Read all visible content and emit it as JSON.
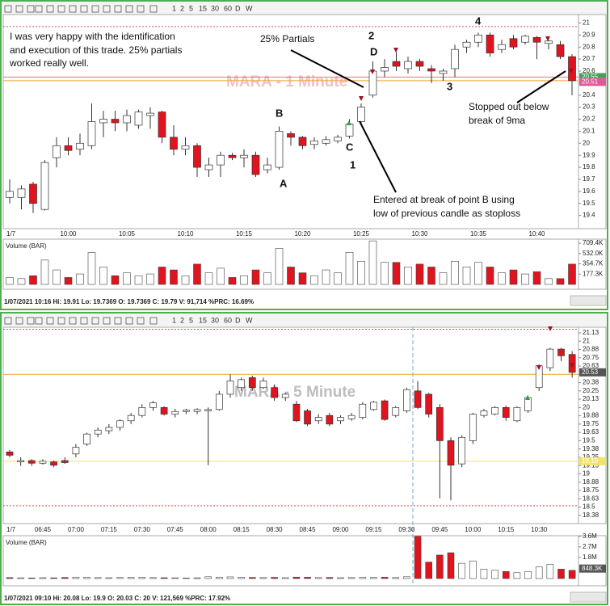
{
  "panels": [
    {
      "toolbar": [
        "1",
        "2",
        "5",
        "15",
        "30",
        "60",
        "D",
        "W"
      ],
      "date_tag": "1/7",
      "status": "1/07/2021 10:16 Hi: 19.91 Lo: 19.7369 O: 19.7369 C: 19.79 V: 91,714 %PRC: 16.69%"
    },
    {
      "toolbar": [
        "1",
        "2",
        "5",
        "15",
        "30",
        "60",
        "D",
        "W"
      ],
      "date_tag": "1/7",
      "status": "1/07/2021 09:10 Hi: 20.08 Lo: 19.9 O: 20.03 C: 20 V: 121,569 %PRC: 17.92%"
    }
  ],
  "chart_data": [
    {
      "type": "candlestick",
      "title": "MARA - 1 Minute",
      "categories": [
        null,
        null,
        null,
        null,
        null,
        "10:00",
        null,
        null,
        null,
        null,
        "10:05",
        null,
        null,
        null,
        null,
        "10:10",
        null,
        null,
        null,
        null,
        "10:15",
        null,
        null,
        null,
        null,
        "10:20",
        null,
        null,
        null,
        null,
        "10:25",
        null,
        null,
        null,
        null,
        "10:30",
        null,
        null,
        null,
        null,
        "10:35",
        null,
        null,
        null,
        null,
        "10:40",
        null,
        null,
        null
      ],
      "open": [
        19.55,
        19.55,
        19.66,
        19.45,
        19.88,
        19.98,
        19.95,
        19.98,
        20.17,
        20.2,
        20.17,
        20.15,
        20.23,
        20.26,
        20.05,
        19.95,
        19.98,
        19.78,
        19.82,
        19.9,
        19.88,
        19.9,
        19.78,
        19.8,
        20.08,
        20.05,
        19.99,
        20.0,
        20.02,
        20.06,
        20.18,
        20.4,
        20.6,
        20.68,
        20.62,
        20.68,
        20.62,
        20.58,
        20.62,
        20.8,
        20.84,
        20.9,
        20.78,
        20.87,
        20.84,
        20.88,
        20.83,
        20.82,
        20.72
      ],
      "high": [
        19.7,
        19.65,
        19.68,
        19.86,
        20.05,
        20.05,
        20.08,
        20.33,
        20.27,
        20.27,
        20.28,
        20.28,
        20.3,
        20.27,
        20.15,
        20.05,
        20.0,
        19.88,
        19.93,
        19.92,
        19.95,
        19.93,
        19.88,
        20.14,
        20.1,
        20.06,
        20.05,
        20.06,
        20.07,
        20.2,
        20.33,
        20.68,
        20.7,
        20.76,
        20.72,
        20.7,
        20.65,
        20.62,
        20.82,
        20.86,
        20.92,
        20.92,
        20.86,
        20.9,
        20.9,
        20.89,
        20.86,
        20.85,
        20.74
      ],
      "low": [
        19.5,
        19.45,
        19.42,
        19.44,
        19.8,
        19.9,
        19.9,
        19.95,
        20.05,
        20.1,
        20.1,
        20.12,
        20.12,
        20.0,
        19.9,
        19.9,
        19.72,
        19.72,
        19.72,
        19.86,
        19.8,
        19.72,
        19.75,
        19.78,
        19.98,
        19.95,
        19.95,
        19.98,
        20.0,
        20.04,
        20.15,
        20.38,
        20.55,
        20.6,
        20.58,
        20.6,
        20.5,
        20.52,
        20.55,
        20.75,
        20.8,
        20.72,
        20.75,
        20.78,
        20.82,
        20.7,
        20.78,
        20.7,
        20.4
      ],
      "close": [
        19.6,
        19.62,
        19.5,
        19.84,
        19.98,
        19.94,
        20.0,
        20.18,
        20.2,
        20.17,
        20.23,
        20.26,
        20.25,
        20.05,
        19.95,
        19.98,
        19.8,
        19.82,
        19.9,
        19.88,
        19.9,
        19.74,
        19.82,
        20.1,
        20.05,
        19.98,
        20.02,
        20.03,
        20.05,
        20.16,
        20.3,
        20.6,
        20.63,
        20.64,
        20.68,
        20.64,
        20.6,
        20.6,
        20.78,
        20.84,
        20.9,
        20.75,
        20.82,
        20.8,
        20.89,
        20.84,
        20.85,
        20.72,
        20.52
      ],
      "color_up": "#ffffff",
      "color_down": "#e0141e",
      "ylim": [
        19.29,
        21.07
      ],
      "yticks": [
        21,
        20.9,
        20.8,
        20.7,
        20.6,
        20.5,
        20.4,
        20.3,
        20.2,
        20.1,
        20,
        19.9,
        19.8,
        19.7,
        19.6,
        19.5,
        19.4
      ],
      "levels": [
        {
          "value": 20.97,
          "color": "#d9534f",
          "style": "dotted"
        },
        {
          "value": 20.55,
          "color": "#e07a7a",
          "style": "solid"
        },
        {
          "value": 20.52,
          "color": "#f0a030",
          "style": "solid"
        }
      ],
      "tags": [
        {
          "value": 20.55,
          "label": "20.55",
          "color": "#3aa657"
        },
        {
          "value": 20.51,
          "label": "20.51",
          "color": "#e05a9a"
        }
      ],
      "annotations": [
        "I was very happy with the identification",
        "and execution of this trade. 25% partials",
        "worked really well.",
        "25% Partials",
        "2",
        "D",
        "4",
        "3",
        "B",
        "C",
        "1",
        "A",
        "Stopped out below",
        "break of 9ma",
        "Entered at break of point B using",
        "low of previous candle as stoploss"
      ]
    },
    {
      "type": "volume",
      "title": "Volume (BAR)",
      "values": [
        120000,
        100000,
        150000,
        420000,
        250000,
        120000,
        180000,
        550000,
        300000,
        150000,
        200000,
        150000,
        180000,
        300000,
        250000,
        150000,
        350000,
        200000,
        280000,
        120000,
        150000,
        250000,
        200000,
        620000,
        300000,
        200000,
        150000,
        250000,
        200000,
        550000,
        400000,
        750000,
        380000,
        380000,
        300000,
        350000,
        300000,
        200000,
        400000,
        300000,
        380000,
        300000,
        200000,
        250000,
        180000,
        220000,
        100000,
        100000,
        350000
      ],
      "color_up": "#ffffff",
      "color_down": "#e0141e",
      "ylim": [
        0,
        780000
      ],
      "yticks": [
        {
          "value": 709400,
          "label": "709.4K"
        },
        {
          "value": 532000,
          "label": "532.0K"
        },
        {
          "value": 354700,
          "label": "354.7K"
        },
        {
          "value": 177300,
          "label": "177.3K"
        }
      ]
    },
    {
      "type": "candlestick",
      "title": "MARA - 5 Minute",
      "categories": [
        null,
        null,
        null,
        "06:45",
        null,
        null,
        "07:00",
        null,
        null,
        "07:15",
        null,
        null,
        "07:30",
        null,
        null,
        "07:45",
        null,
        null,
        "08:00",
        null,
        null,
        "08:15",
        null,
        null,
        "08:30",
        null,
        null,
        "08:45",
        null,
        null,
        "09:00",
        null,
        null,
        "09:15",
        null,
        null,
        "09:30",
        null,
        null,
        "09:45",
        null,
        null,
        "10:00",
        null,
        null,
        "10:15",
        null,
        null,
        "10:30",
        null,
        null,
        null
      ],
      "open": [
        19.33,
        19.18,
        19.2,
        19.16,
        19.18,
        19.2,
        19.3,
        19.45,
        19.6,
        19.65,
        19.7,
        19.8,
        19.88,
        20.0,
        20.0,
        19.9,
        19.94,
        19.94,
        19.95,
        19.97,
        20.2,
        20.3,
        20.45,
        20.3,
        20.3,
        20.15,
        20.05,
        19.95,
        19.8,
        19.88,
        19.8,
        19.83,
        19.85,
        19.97,
        20.1,
        19.88,
        19.95,
        20.25,
        20.2,
        20.0,
        19.5,
        19.15,
        19.5,
        19.88,
        19.9,
        20.0,
        19.8,
        19.95,
        20.3,
        20.6,
        20.88,
        20.8
      ],
      "high": [
        19.36,
        19.25,
        19.22,
        19.22,
        19.2,
        19.25,
        19.45,
        19.62,
        19.7,
        19.75,
        19.82,
        19.92,
        20.05,
        20.1,
        20.02,
        19.98,
        19.98,
        19.99,
        20.0,
        20.25,
        20.5,
        20.45,
        20.48,
        20.45,
        20.35,
        20.22,
        20.1,
        19.98,
        19.9,
        19.92,
        19.88,
        19.92,
        20.08,
        20.1,
        20.12,
        20.02,
        20.3,
        20.4,
        20.22,
        20.05,
        19.55,
        19.58,
        19.92,
        19.98,
        20.02,
        20.03,
        20.02,
        20.18,
        20.65,
        20.9,
        20.9,
        20.85
      ],
      "low": [
        19.25,
        19.12,
        19.12,
        19.14,
        19.1,
        19.15,
        19.25,
        19.42,
        19.55,
        19.6,
        19.65,
        19.75,
        19.85,
        19.95,
        19.88,
        19.85,
        19.9,
        19.9,
        19.13,
        19.95,
        20.15,
        20.25,
        20.25,
        20.28,
        20.1,
        20.1,
        19.78,
        19.72,
        19.75,
        19.72,
        19.75,
        19.8,
        19.82,
        19.95,
        19.8,
        19.85,
        19.92,
        19.98,
        19.85,
        18.63,
        18.6,
        19.1,
        19.45,
        19.85,
        19.88,
        19.8,
        19.78,
        19.92,
        20.25,
        20.55,
        20.7,
        20.45
      ],
      "close": [
        19.28,
        19.2,
        19.16,
        19.19,
        19.13,
        19.17,
        19.4,
        19.6,
        19.66,
        19.7,
        19.8,
        19.88,
        20.0,
        20.07,
        19.9,
        19.94,
        19.96,
        19.97,
        19.97,
        20.2,
        20.4,
        20.42,
        20.3,
        20.4,
        20.15,
        20.2,
        19.8,
        19.75,
        19.85,
        19.75,
        19.85,
        19.88,
        20.05,
        20.08,
        19.82,
        20.0,
        20.27,
        20.0,
        19.9,
        19.5,
        19.13,
        19.55,
        19.9,
        19.95,
        20.0,
        19.85,
        20.0,
        20.15,
        20.63,
        20.88,
        20.78,
        20.53
      ],
      "color_up": "#ffffff",
      "color_down": "#e0141e",
      "ylim": [
        18.25,
        21.21
      ],
      "yticks": [
        {
          "value": 21.125,
          "label": "21.13"
        },
        21,
        {
          "value": 20.875,
          "label": "20.88"
        },
        20.75,
        {
          "value": 20.625,
          "label": "20.63"
        },
        20.5,
        {
          "value": 20.375,
          "label": "20.38"
        },
        20.25,
        {
          "value": 20.125,
          "label": "20.13"
        },
        20,
        {
          "value": 19.875,
          "label": "19.88"
        },
        19.75,
        {
          "value": 19.625,
          "label": "19.63"
        },
        19.5,
        {
          "value": 19.375,
          "label": "19.38"
        },
        19.25,
        {
          "value": 19.125,
          "label": "19.13"
        },
        19,
        {
          "value": 18.875,
          "label": "18.88"
        },
        18.75,
        {
          "value": 18.625,
          "label": "18.63"
        },
        18.5,
        {
          "value": 18.375,
          "label": "18.38"
        }
      ],
      "levels": [
        {
          "value": 21.18,
          "color": "#d9534f",
          "style": "dotted"
        },
        {
          "value": 20.5,
          "color": "#f0a030",
          "style": "solid"
        },
        {
          "value": 19.19,
          "color": "#f3e36a",
          "style": "solid"
        },
        {
          "value": 18.52,
          "color": "#d9534f",
          "style": "dotted"
        }
      ],
      "tags": [
        {
          "value": 20.53,
          "label": "20.53",
          "color": "#555555"
        },
        {
          "value": 19.19,
          "label": "19.19",
          "color": "#f3e36a"
        }
      ],
      "annotations": []
    },
    {
      "type": "volume",
      "title": "Volume (BAR)",
      "values": [
        80000,
        60000,
        50000,
        70000,
        60000,
        90000,
        120000,
        100000,
        80000,
        70000,
        90000,
        100000,
        110000,
        80000,
        70000,
        60000,
        50000,
        60000,
        150000,
        120000,
        140000,
        100000,
        90000,
        80000,
        100000,
        70000,
        120000,
        110000,
        80000,
        90000,
        70000,
        80000,
        100000,
        90000,
        110000,
        80000,
        150000,
        3600000,
        1400000,
        2000000,
        2200000,
        1300000,
        1500000,
        800000,
        700000,
        600000,
        500000,
        600000,
        1000000,
        1200000,
        800000,
        700000
      ],
      "color_up": "#ffffff",
      "color_down": "#e0141e",
      "ylim": [
        0,
        3650000
      ],
      "yticks": [
        {
          "value": 3600000,
          "label": "3.6M"
        },
        {
          "value": 2700000,
          "label": "2.7M"
        },
        {
          "value": 1800000,
          "label": "1.8M"
        }
      ],
      "tags": [
        {
          "value": 848300,
          "label": "848.3K",
          "color": "#555555"
        }
      ]
    }
  ]
}
